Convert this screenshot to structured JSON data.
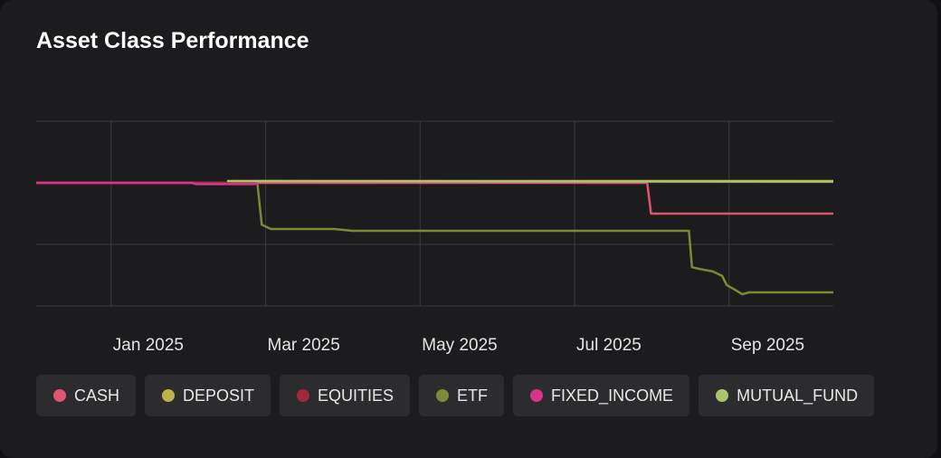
{
  "chart_data": {
    "type": "line",
    "title": "Asset Class Performance",
    "xlim": [
      -0.97,
      9.35
    ],
    "xticks": [
      {
        "value": 0,
        "label": "Jan 2025"
      },
      {
        "value": 2,
        "label": "Mar 2025"
      },
      {
        "value": 4,
        "label": "May 2025"
      },
      {
        "value": 6,
        "label": "Jul 2025"
      },
      {
        "value": 8,
        "label": "Sep 2025"
      }
    ],
    "ylim": [
      0,
      3
    ],
    "yticks": [
      0,
      1,
      2,
      3
    ],
    "grid": true,
    "series": [
      {
        "name": "CASH",
        "color": "#e05670",
        "x": [
          -0.97,
          6.94,
          6.99,
          9.35
        ],
        "values": [
          2,
          2,
          1.5,
          1.5
        ]
      },
      {
        "name": "DEPOSIT",
        "color": "#c0b048",
        "x": [
          1.9,
          9.35
        ],
        "values": [
          2.03,
          2.03
        ]
      },
      {
        "name": "EQUITIES",
        "color": "#a3283f",
        "x": [
          -0.97,
          1.9
        ],
        "values": [
          2,
          2
        ]
      },
      {
        "name": "ETF",
        "color": "#7b8b35",
        "x": [
          1.54,
          1.89,
          1.95,
          2.07,
          2.89,
          3.12,
          7.48,
          7.52,
          7.62,
          7.79,
          7.91,
          7.97,
          8.08,
          8.17,
          8.26,
          9.35
        ],
        "values": [
          2.03,
          2.03,
          1.32,
          1.25,
          1.25,
          1.22,
          1.22,
          0.63,
          0.6,
          0.56,
          0.49,
          0.34,
          0.26,
          0.19,
          0.22,
          0.22
        ]
      },
      {
        "name": "FIXED_INCOME",
        "color": "#d6358a",
        "x": [
          -0.97,
          1.05,
          1.1,
          1.85,
          1.9
        ],
        "values": [
          2,
          2,
          1.98,
          1.98,
          2
        ]
      },
      {
        "name": "MUTUAL_FUND",
        "color": "#a9c46a",
        "x": [
          1.5,
          9.35
        ],
        "values": [
          2.03,
          2.02
        ]
      }
    ]
  }
}
